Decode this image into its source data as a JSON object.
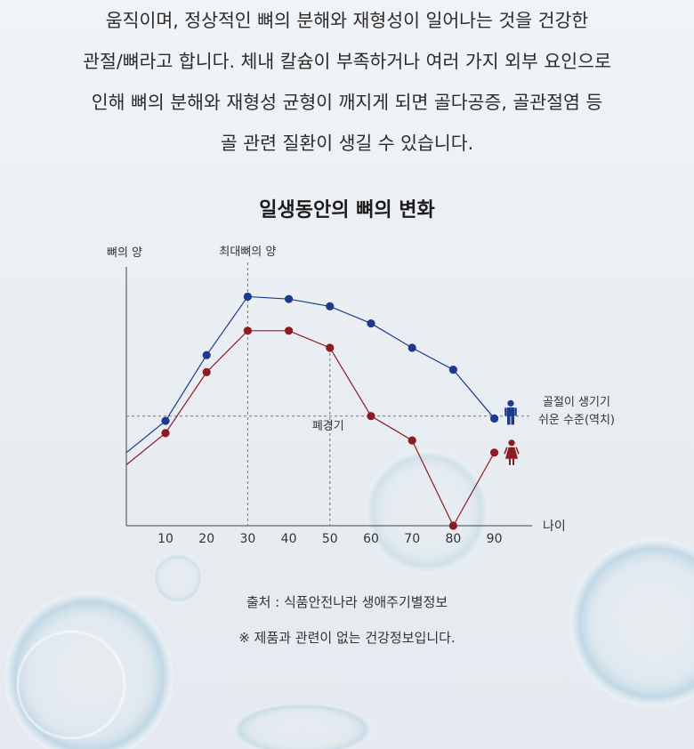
{
  "intro": {
    "lines": [
      "움직이며, 정상적인 뼈의 분해와 재형성이 일어나는 것을 건강한",
      "관절/뼈라고 합니다. 체내 칼슘이 부족하거나 여러 가지 외부 요인으로",
      "인해 뼈의 분해와 재형성 균형이 깨지게 되면 골다공증, 골관절염 등",
      "골 관련 질환이 생길 수 있습니다."
    ]
  },
  "chart_data": {
    "type": "line",
    "title": "일생동안의 뼈의 변화",
    "xlabel": "나이",
    "ylabel": "뼈의 양",
    "x_ticks": [
      10,
      20,
      30,
      40,
      50,
      60,
      70,
      80,
      90
    ],
    "xlim": [
      1,
      100
    ],
    "ylim": [
      0,
      100
    ],
    "grid": false,
    "series": [
      {
        "icon": "male-icon",
        "color": "#1d3a8f",
        "lead_in": [
          [
            1,
            30
          ]
        ],
        "x": [
          10,
          20,
          30,
          40,
          50,
          60,
          70,
          80,
          90
        ],
        "values": [
          43,
          70,
          94,
          93,
          90,
          83,
          73,
          64,
          44
        ]
      },
      {
        "icon": "female-icon",
        "color": "#8e1b24",
        "lead_in": [
          [
            1,
            25
          ]
        ],
        "x": [
          10,
          20,
          30,
          40,
          50,
          60,
          70,
          80,
          90
        ],
        "values": [
          38,
          63,
          80,
          80,
          73,
          45,
          35,
          0,
          30
        ]
      }
    ],
    "reference_lines": {
      "fracture_level": {
        "value": 45,
        "label_lines": [
          "골절이 생기기",
          "쉬운 수준(역치)"
        ]
      },
      "peak": {
        "x": 30,
        "label": "최대뼈의 양"
      },
      "menopause": {
        "x": 50,
        "label": "폐경기"
      }
    }
  },
  "footer": {
    "source": "출처 : 식품안전나라 생애주기별정보",
    "note": "※ 제품과 관련이 없는 건강정보입니다."
  }
}
